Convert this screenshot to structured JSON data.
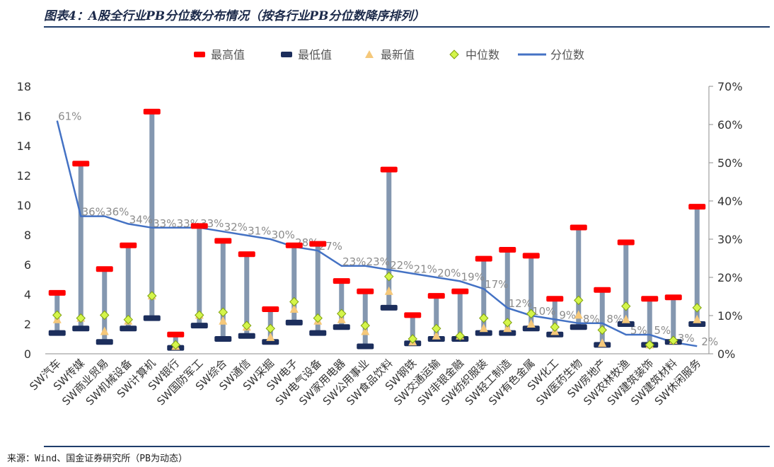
{
  "page_title": "图表4：A股全行业PB分位数分布情况（按各行业PB分位数降序排列）",
  "source": "来源：Wind、国金证券研究所（PB为动态）",
  "colors": {
    "max": "#ff0000",
    "min": "#1c2e5c",
    "latest": "#f5c87a",
    "median": "#d4f54a",
    "median_stroke": "#7fa010",
    "percentile_line": "#4472c4",
    "range_bar": "#8497b0",
    "pct_label": "#8c8c8c"
  },
  "chart_data": {
    "type": "bar",
    "categories": [
      "SW汽车",
      "SW传媒",
      "SW商业贸易",
      "SW机械设备",
      "SW计算机",
      "SW银行",
      "SW国防军工",
      "SW综合",
      "SW通信",
      "SW采掘",
      "SW电子",
      "SW电气设备",
      "SW家用电器",
      "SW公用事业",
      "SW食品饮料",
      "SW钢铁",
      "SW交通运输",
      "SW非银金融",
      "SW纺织服装",
      "SW轻工制造",
      "SW有色金属",
      "SW化工",
      "SW医药生物",
      "SW房地产",
      "SW农林牧渔",
      "SW建筑装饰",
      "SW建筑材料",
      "SW休闲服务"
    ],
    "legend": [
      {
        "key": "max",
        "label": "最高值",
        "icon": "red-dash-marker"
      },
      {
        "key": "min",
        "label": "最低值",
        "icon": "navy-dash-marker"
      },
      {
        "key": "latest",
        "label": "最新值",
        "icon": "triangle-marker"
      },
      {
        "key": "median",
        "label": "中位数",
        "icon": "diamond-marker"
      },
      {
        "key": "percentile",
        "label": "分位数",
        "icon": "line-marker"
      }
    ],
    "series": [
      {
        "name": "最高值",
        "values": [
          4.1,
          12.8,
          5.7,
          7.3,
          16.3,
          1.3,
          8.6,
          7.6,
          6.7,
          3.0,
          7.3,
          7.4,
          4.9,
          4.2,
          12.4,
          2.6,
          3.9,
          4.2,
          6.4,
          7.0,
          6.6,
          3.7,
          8.5,
          4.3,
          7.5,
          3.7,
          3.8,
          9.9
        ]
      },
      {
        "name": "最低值",
        "values": [
          1.4,
          1.7,
          0.8,
          1.7,
          2.4,
          0.4,
          1.9,
          1.0,
          1.2,
          0.8,
          2.1,
          1.4,
          1.8,
          0.5,
          3.1,
          0.7,
          1.0,
          1.0,
          1.4,
          1.4,
          1.7,
          1.3,
          1.8,
          0.6,
          2.0,
          0.6,
          0.8,
          2.0
        ]
      },
      {
        "name": "最新值",
        "values": [
          2.3,
          2.4,
          1.5,
          2.2,
          3.9,
          0.5,
          2.6,
          2.2,
          1.8,
          1.1,
          3.0,
          2.2,
          2.3,
          1.5,
          4.2,
          0.8,
          1.2,
          1.2,
          1.7,
          1.7,
          2.0,
          1.5,
          2.6,
          0.7,
          2.3,
          0.6,
          0.9,
          2.3
        ]
      },
      {
        "name": "中位数",
        "values": [
          2.6,
          2.4,
          2.6,
          2.3,
          3.9,
          0.6,
          2.6,
          2.8,
          1.9,
          1.7,
          3.5,
          2.4,
          2.7,
          1.9,
          5.2,
          1.0,
          1.7,
          1.2,
          2.4,
          2.1,
          2.7,
          1.8,
          3.6,
          1.6,
          3.2,
          0.6,
          0.9,
          3.1
        ]
      },
      {
        "name": "分位数",
        "axis": "right",
        "values": [
          61,
          36,
          36,
          34,
          33,
          33,
          33,
          32,
          31,
          30,
          28,
          27,
          23,
          23,
          22,
          21,
          20,
          19,
          17,
          12,
          10,
          9,
          8,
          8,
          5,
          5,
          3,
          2
        ]
      }
    ],
    "percentile_labels": [
      "61%",
      "36%",
      "36%",
      "34%",
      "33%",
      "33%",
      "33%",
      "32%",
      "31%",
      "30%",
      "28%",
      "27%",
      "23%",
      "23%",
      "22%",
      "21%",
      "20%",
      "19%",
      "17%",
      "12%",
      "10%",
      "9%",
      "8%",
      "8%",
      "5%",
      "5%",
      "3%",
      "2%"
    ],
    "ylim": [
      0,
      18
    ],
    "yticks": [
      "0",
      "2",
      "4",
      "6",
      "8",
      "10",
      "12",
      "14",
      "16",
      "18"
    ],
    "y2lim": [
      0,
      70
    ],
    "y2ticks": [
      "0%",
      "10%",
      "20%",
      "30%",
      "40%",
      "50%",
      "60%",
      "70%"
    ],
    "legend_position": "top"
  }
}
